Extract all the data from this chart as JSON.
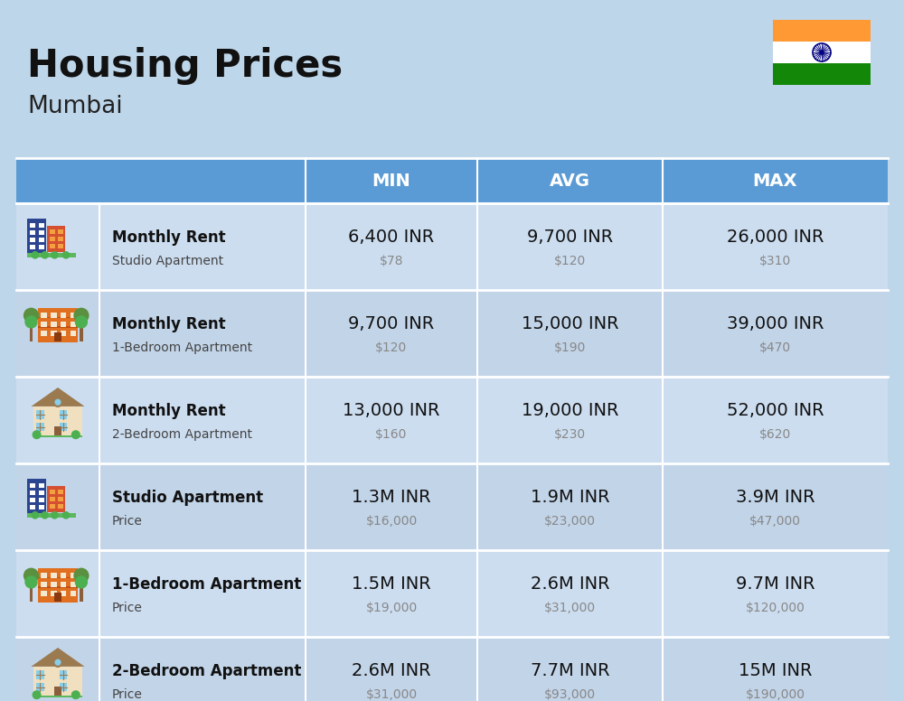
{
  "title": "Housing Prices",
  "subtitle": "Mumbai",
  "bg_color": "#bed6ea",
  "header_bg": "#5b9bd5",
  "header_text_color": "#ffffff",
  "row_bg_even": "#ccddf0",
  "row_bg_odd": "#c2d4e8",
  "headers": [
    "MIN",
    "AVG",
    "MAX"
  ],
  "rows": [
    {
      "icon_type": "blue_office",
      "label_bold": "Monthly Rent",
      "label_regular": "Studio Apartment",
      "min_inr": "6,400 INR",
      "min_usd": "$78",
      "avg_inr": "9,700 INR",
      "avg_usd": "$120",
      "max_inr": "26,000 INR",
      "max_usd": "$310"
    },
    {
      "icon_type": "orange_apartment",
      "label_bold": "Monthly Rent",
      "label_regular": "1-Bedroom Apartment",
      "min_inr": "9,700 INR",
      "min_usd": "$120",
      "avg_inr": "15,000 INR",
      "avg_usd": "$190",
      "max_inr": "39,000 INR",
      "max_usd": "$470"
    },
    {
      "icon_type": "beige_house",
      "label_bold": "Monthly Rent",
      "label_regular": "2-Bedroom Apartment",
      "min_inr": "13,000 INR",
      "min_usd": "$160",
      "avg_inr": "19,000 INR",
      "avg_usd": "$230",
      "max_inr": "52,000 INR",
      "max_usd": "$620"
    },
    {
      "icon_type": "blue_office",
      "label_bold": "Studio Apartment",
      "label_regular": "Price",
      "min_inr": "1.3M INR",
      "min_usd": "$16,000",
      "avg_inr": "1.9M INR",
      "avg_usd": "$23,000",
      "max_inr": "3.9M INR",
      "max_usd": "$47,000"
    },
    {
      "icon_type": "orange_apartment",
      "label_bold": "1-Bedroom Apartment",
      "label_regular": "Price",
      "min_inr": "1.5M INR",
      "min_usd": "$19,000",
      "avg_inr": "2.6M INR",
      "avg_usd": "$31,000",
      "max_inr": "9.7M INR",
      "max_usd": "$120,000"
    },
    {
      "icon_type": "beige_house",
      "label_bold": "2-Bedroom Apartment",
      "label_regular": "Price",
      "min_inr": "2.6M INR",
      "min_usd": "$31,000",
      "avg_inr": "7.7M INR",
      "avg_usd": "$93,000",
      "max_inr": "15M INR",
      "max_usd": "$190,000"
    }
  ],
  "flag_colors": [
    "#FF9933",
    "#FFFFFF",
    "#138808"
  ],
  "flag_chakra_color": "#000080",
  "title_fontsize": 30,
  "subtitle_fontsize": 19,
  "header_fontsize": 14,
  "inr_fontsize": 14,
  "usd_fontsize": 10,
  "label_bold_fontsize": 12,
  "label_reg_fontsize": 10
}
